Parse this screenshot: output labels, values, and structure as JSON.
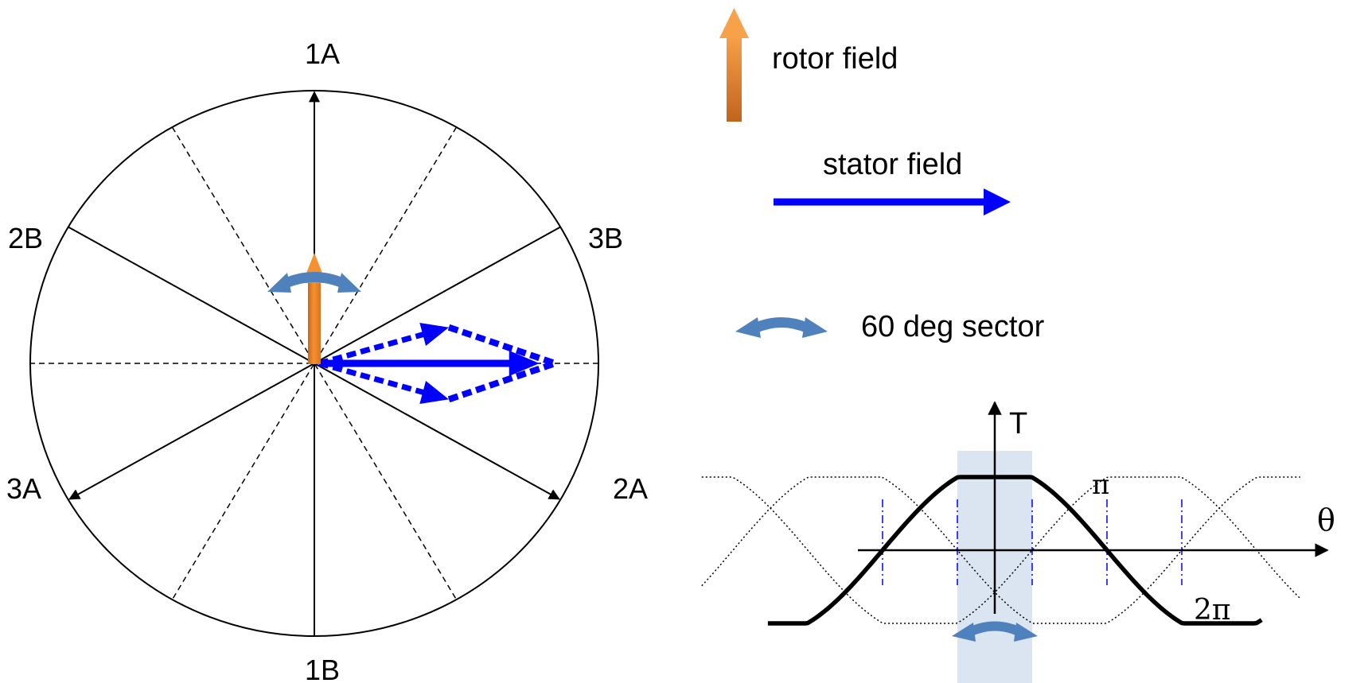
{
  "phasor_diagram": {
    "phase_labels": {
      "a1": "1A",
      "b1": "1B",
      "a2": "2A",
      "b2": "2B",
      "a3": "3A",
      "b3": "3B"
    },
    "phase_axis_angles_deg": {
      "a1": 90,
      "b1": 270,
      "a2": -30,
      "b2": 150,
      "a3": 210,
      "b3": 30
    },
    "sector_boundary_angles_deg": [
      0,
      60,
      120,
      180,
      240,
      300
    ],
    "rotor_field_angle_deg": 90,
    "stator_field_angle_deg": 0,
    "stator_components_angles_deg": [
      15,
      -15
    ]
  },
  "legend": {
    "rotor_label": "rotor field",
    "stator_label": "stator field",
    "sector_label": "60 deg sector"
  },
  "torque_plot": {
    "y_axis_label": "T",
    "x_axis_label": "θ",
    "pi_label": "π",
    "two_pi_label": "2π"
  },
  "colors": {
    "rotor_orange": "#f5922f",
    "stator_blue": "#0000ff",
    "sector_arrow_blue": "#4f81bd",
    "shade_blue": "#dbe5f1",
    "line_black": "#000000"
  }
}
